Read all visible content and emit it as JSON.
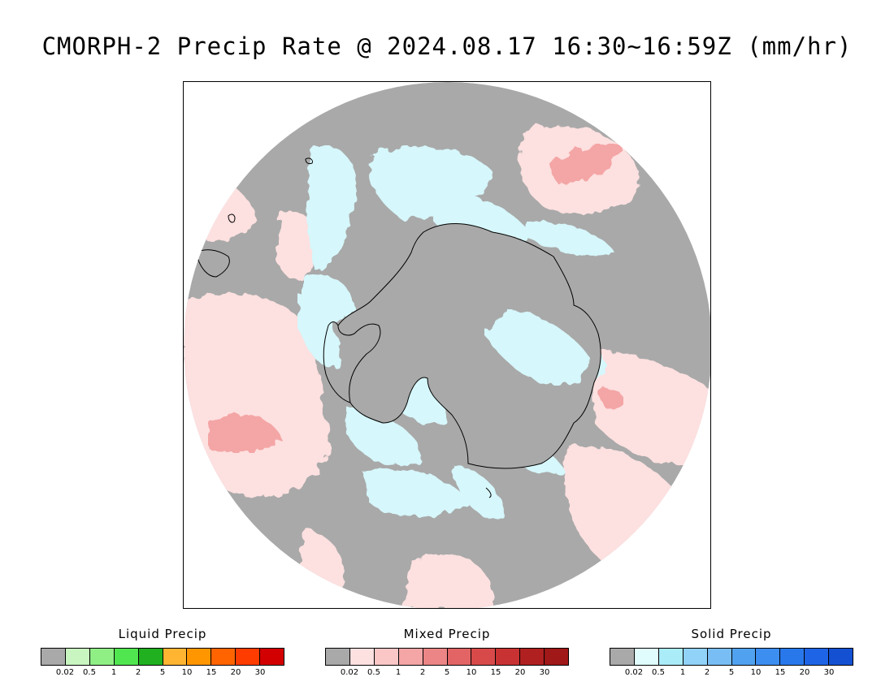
{
  "title": "CMORPH-2 Precip Rate @ 2024.08.17 16:30~16:59Z (mm/hr)",
  "map": {
    "projection": "south-polar-stereographic",
    "colors": {
      "no_precip": "#a9a9a9",
      "mixed_light": "#fde0e0",
      "mixed_medium": "#f4a5a5",
      "solid_light": "#d6f7fb",
      "coastline": "#000000",
      "frame": "#000000"
    }
  },
  "legends": [
    {
      "id": "liquid",
      "title": "Liquid Precip",
      "colors": [
        "#a9a9a9",
        "#c8f5c0",
        "#8fef85",
        "#50e650",
        "#20b020",
        "#ffb432",
        "#ff9600",
        "#ff6400",
        "#ff3c00",
        "#d20000"
      ],
      "ticks": [
        "0.02",
        "0.5",
        "1",
        "2",
        "5",
        "10",
        "15",
        "20",
        "30"
      ]
    },
    {
      "id": "mixed",
      "title": "Mixed Precip",
      "colors": [
        "#a9a9a9",
        "#fde0e0",
        "#fbc6c6",
        "#f4a5a5",
        "#ec8585",
        "#e26464",
        "#d84a4a",
        "#c83232",
        "#b02020",
        "#a01818"
      ],
      "ticks": [
        "0.02",
        "0.5",
        "1",
        "2",
        "5",
        "10",
        "15",
        "20",
        "30"
      ]
    },
    {
      "id": "solid",
      "title": "Solid Precip",
      "colors": [
        "#a9a9a9",
        "#e0fcfc",
        "#aaecf8",
        "#90d2f8",
        "#78bef4",
        "#50a2f0",
        "#3c8ef0",
        "#2878ec",
        "#1e64e6",
        "#1450d2"
      ],
      "ticks": [
        "0.02",
        "0.5",
        "1",
        "2",
        "5",
        "10",
        "15",
        "20",
        "30"
      ]
    }
  ]
}
